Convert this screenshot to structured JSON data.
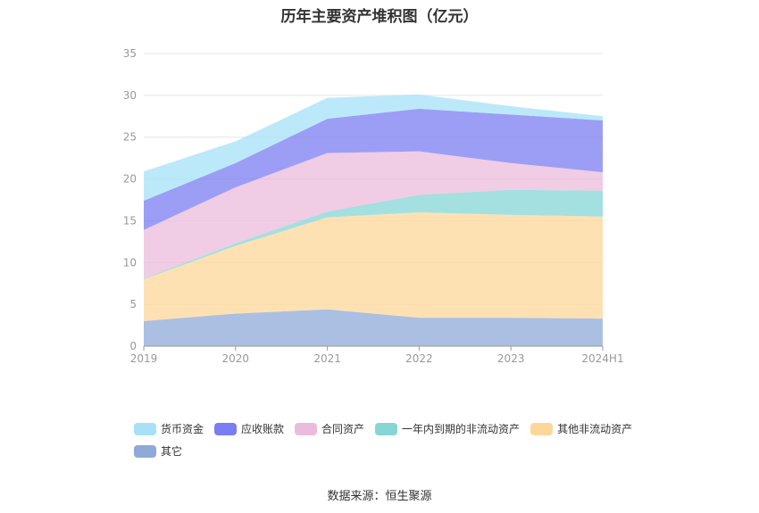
{
  "title": "历年主要资产堆积图（亿元）",
  "source": "数据来源：恒生聚源",
  "chart_data": {
    "type": "area",
    "stacked": true,
    "categories": [
      "2019",
      "2020",
      "2021",
      "2022",
      "2023",
      "2024H1"
    ],
    "ylim": [
      0,
      35
    ],
    "yticks": [
      0,
      5,
      10,
      15,
      20,
      25,
      30,
      35
    ],
    "grid": true,
    "legend_position": "bottom",
    "series": [
      {
        "name": "其它",
        "color": "#8fa9d9",
        "values": [
          3.0,
          3.9,
          4.4,
          3.4,
          3.4,
          3.3
        ]
      },
      {
        "name": "其他非流动资产",
        "color": "#fdd79a",
        "values": [
          5.0,
          8.1,
          11.0,
          12.6,
          12.3,
          12.2
        ]
      },
      {
        "name": "一年内到期的非流动资产",
        "color": "#86d6d6",
        "values": [
          0.1,
          0.3,
          0.7,
          2.1,
          3.0,
          3.1
        ]
      },
      {
        "name": "合同资产",
        "color": "#ebbbdc",
        "values": [
          5.8,
          6.7,
          7.0,
          5.2,
          3.2,
          2.2
        ]
      },
      {
        "name": "应收账款",
        "color": "#7b7df2",
        "values": [
          3.5,
          2.9,
          4.1,
          5.1,
          5.8,
          6.2
        ]
      },
      {
        "name": "货币资金",
        "color": "#a6e1f8",
        "values": [
          3.5,
          2.6,
          2.5,
          1.7,
          1.0,
          0.5
        ]
      }
    ],
    "legend_order": [
      "货币资金",
      "应收账款",
      "合同资产",
      "一年内到期的非流动资产",
      "其他非流动资产",
      "其它"
    ]
  }
}
